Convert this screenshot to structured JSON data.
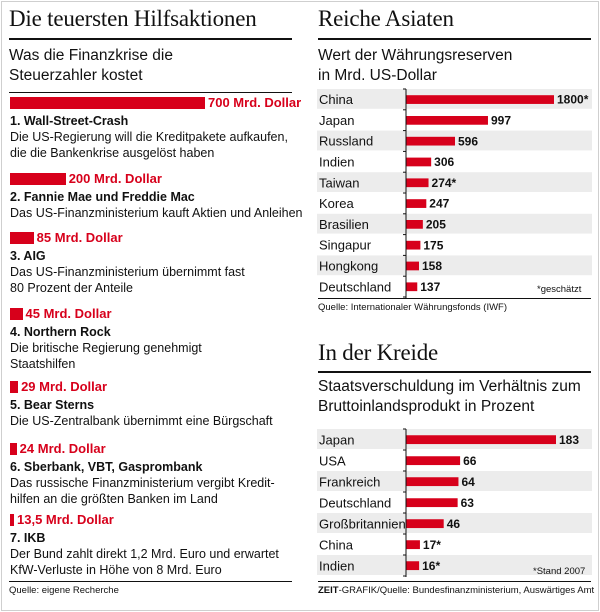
{
  "left": {
    "title": "Die teuersten Hilfsaktionen",
    "subtitle": "Was die Finanzkrise die\nSteuerzahler kostet",
    "source": "Quelle: eigene Recherche",
    "items": [
      {
        "amount": "700 Mrd. Dollar",
        "value": 700,
        "title": "1. Wall-Street-Crash",
        "desc": "Die US-Regierung will die Kreditpakete aufkaufen,\ndie die Bankenkrise ausgelöst haben"
      },
      {
        "amount": "200 Mrd. Dollar",
        "value": 200,
        "title": "2. Fannie Mae und Freddie Mac",
        "desc": "Das US-Finanzministerium kauft Aktien und Anleihen"
      },
      {
        "amount": "85 Mrd. Dollar",
        "value": 85,
        "title": "3. AIG",
        "desc": "Das US-Finanzministerium übernimmt fast\n80 Prozent der Anteile"
      },
      {
        "amount": "45 Mrd. Dollar",
        "value": 45,
        "title": "4. Northern Rock",
        "desc": "Die britische Regierung genehmigt\nStaatshilfen"
      },
      {
        "amount": "29 Mrd. Dollar",
        "value": 29,
        "title": "5. Bear Sterns",
        "desc": "Die US-Zentralbank übernimmt eine Bürgschaft"
      },
      {
        "amount": "24 Mrd. Dollar",
        "value": 24,
        "title": "6. Sberbank, VBT, Gasprombank",
        "desc": "Das russische Finanzministerium vergibt Kredit-\nhilfen an die größten Banken im Land"
      },
      {
        "amount": "13,5 Mrd. Dollar",
        "value": 13.5,
        "title": "7. IKB",
        "desc": "Der Bund zahlt direkt 1,2 Mrd. Euro und erwartet\nKfW-Verluste in Höhe von 8 Mrd. Euro"
      }
    ]
  },
  "asia": {
    "title": "Reiche Asiaten",
    "subtitle": "Wert der Währungsreserven\nin Mrd. US-Dollar",
    "note": "*geschätzt",
    "source": "Quelle: Internationaler Währungsfonds (IWF)"
  },
  "debt": {
    "title": "In der Kreide",
    "subtitle": "Staatsverschuldung im Verhältnis zum\nBruttoinlandsprodukt in Prozent",
    "note": "*Stand 2007",
    "source_brand": "ZEIT",
    "source_rest": "-GRAFIK/Quelle: Bundesfinanzministerium, Auswärtiges Amt"
  },
  "chart_data": [
    {
      "type": "bar",
      "title": "Die teuersten Hilfsaktionen",
      "categories": [
        "1. Wall-Street-Crash",
        "2. Fannie Mae und Freddie Mac",
        "3. AIG",
        "4. Northern Rock",
        "5. Bear Sterns",
        "6. Sberbank, VBT, Gasprombank",
        "7. IKB"
      ],
      "values": [
        700,
        200,
        85,
        45,
        29,
        24,
        13.5
      ],
      "ylabel": "Mrd. Dollar"
    },
    {
      "type": "bar",
      "title": "Reiche Asiaten",
      "categories": [
        "China",
        "Japan",
        "Russland",
        "Indien",
        "Taiwan",
        "Korea",
        "Brasilien",
        "Singapur",
        "Hongkong",
        "Deutschland"
      ],
      "values": [
        1800,
        997,
        596,
        306,
        274,
        247,
        205,
        175,
        158,
        137
      ],
      "labels": [
        "1800*",
        "997",
        "596",
        "306",
        "274*",
        "247",
        "205",
        "175",
        "158",
        "137"
      ]
    },
    {
      "type": "bar",
      "title": "In der Kreide",
      "categories": [
        "Japan",
        "USA",
        "Frankreich",
        "Deutschland",
        "Großbritannien",
        "China",
        "Indien"
      ],
      "values": [
        183,
        66,
        64,
        63,
        46,
        17,
        16
      ],
      "labels": [
        "183",
        "66",
        "64",
        "63",
        "46",
        "17*",
        "16*"
      ]
    }
  ],
  "colors": {
    "accent": "#d7001b",
    "row_band": "#ececec",
    "text": "#111111"
  }
}
